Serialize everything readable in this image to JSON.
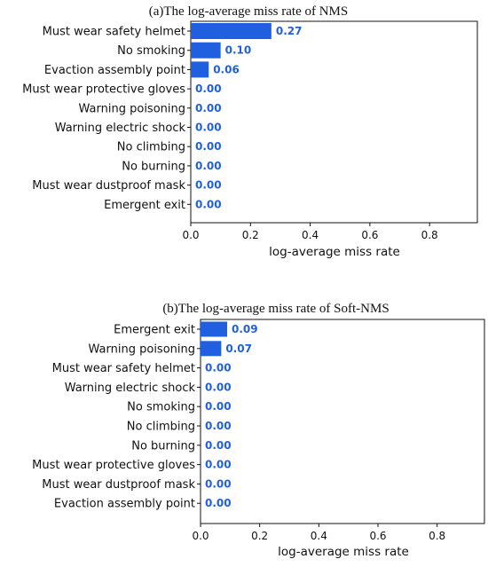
{
  "colors": {
    "bar": "#1f5fe0",
    "label": "#1f5fe0",
    "axis": "#111111"
  },
  "chart_data": [
    {
      "type": "bar",
      "orientation": "horizontal",
      "title": "(a)The log-average miss rate of NMS",
      "xlabel": "log-average miss rate",
      "xlim": [
        0,
        0.96
      ],
      "xticks": [
        "0.0",
        "0.2",
        "0.4",
        "0.6",
        "0.8"
      ],
      "categories": [
        "Must wear safety helmet",
        "No smoking",
        "Evaction assembly point",
        "Must wear protective gloves",
        "Warning poisoning",
        "Warning electric shock",
        "No climbing",
        "No burning",
        "Must wear dustproof mask",
        "Emergent exit"
      ],
      "values": [
        0.27,
        0.1,
        0.06,
        0.0,
        0.0,
        0.0,
        0.0,
        0.0,
        0.0,
        0.0
      ],
      "value_labels": [
        "0.27",
        "0.10",
        "0.06",
        "0.00",
        "0.00",
        "0.00",
        "0.00",
        "0.00",
        "0.00",
        "0.00"
      ]
    },
    {
      "type": "bar",
      "orientation": "horizontal",
      "title": "(b)The log-average miss rate of Soft-NMS",
      "xlabel": "log-average miss rate",
      "xlim": [
        0,
        0.96
      ],
      "xticks": [
        "0.0",
        "0.2",
        "0.4",
        "0.6",
        "0.8"
      ],
      "categories": [
        "Emergent exit",
        "Warning poisoning",
        "Must wear safety helmet",
        "Warning electric shock",
        "No smoking",
        "No climbing",
        "No burning",
        "Must wear protective gloves",
        "Must wear dustproof mask",
        "Evaction assembly point"
      ],
      "values": [
        0.09,
        0.07,
        0.0,
        0.0,
        0.0,
        0.0,
        0.0,
        0.0,
        0.0,
        0.0
      ],
      "value_labels": [
        "0.09",
        "0.07",
        "0.00",
        "0.00",
        "0.00",
        "0.00",
        "0.00",
        "0.00",
        "0.00",
        "0.00"
      ]
    }
  ]
}
